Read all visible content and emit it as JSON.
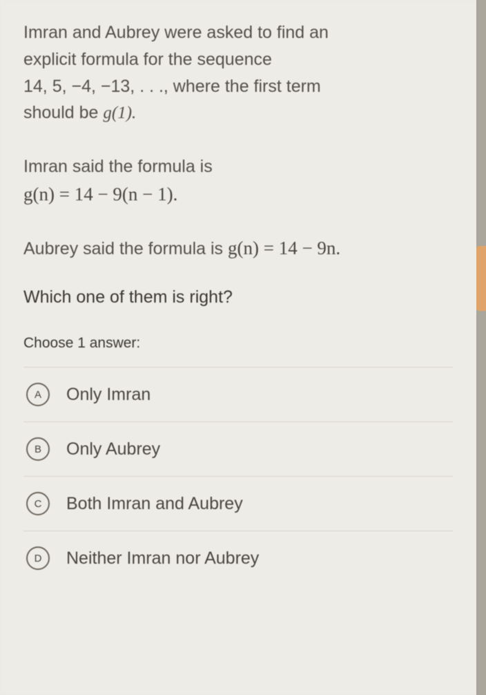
{
  "problem": {
    "line1": "Imran and Aubrey were asked to find an",
    "line2": "explicit formula for the sequence",
    "sequence": "14, 5, −4, −13, . . ., where the first term",
    "line4_a": "should be ",
    "line4_b": "g(1)."
  },
  "imran": {
    "intro": "Imran said the formula is",
    "formula": "g(n) = 14 − 9(n − 1)."
  },
  "aubrey": {
    "intro": "Aubrey said the formula is ",
    "formula": "g(n) = 14 − 9n."
  },
  "question": "Which one of them is right?",
  "choose": "Choose 1 answer:",
  "options": {
    "a": {
      "letter": "A",
      "text": "Only Imran"
    },
    "b": {
      "letter": "B",
      "text": "Only Aubrey"
    },
    "c": {
      "letter": "C",
      "text": "Both Imran and Aubrey"
    },
    "d": {
      "letter": "D",
      "text": "Neither Imran nor Aubrey"
    }
  },
  "colors": {
    "page_bg": "#eeece6",
    "text": "#555049",
    "border": "#d6d3cb",
    "edge": "#aaa69c",
    "tab": "#e0a36a"
  }
}
